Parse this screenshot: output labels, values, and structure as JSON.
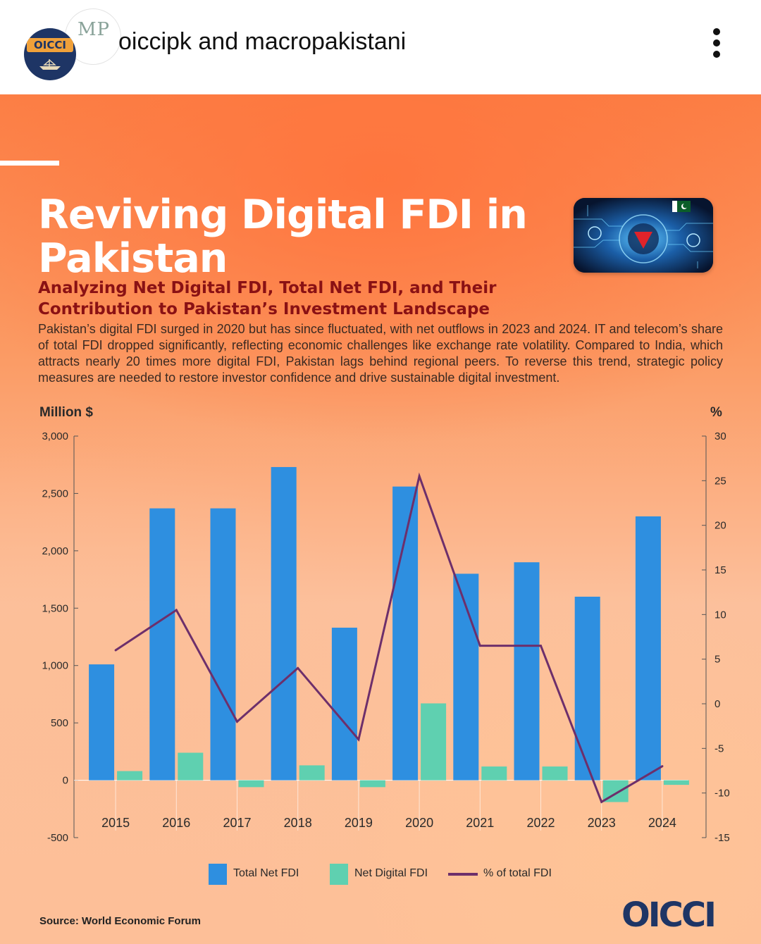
{
  "header": {
    "account_names": "oiccipk and macropakistani",
    "avatar_primary_text": "OICCI",
    "avatar_secondary_text": "MP"
  },
  "poster": {
    "title": "Reviving Digital FDI in Pakistan",
    "subtitle": "Analyzing Net Digital FDI, Total Net FDI, and Their Contribution to Pakistan’s Investment Landscape",
    "body": "Pakistan’s digital FDI surged in 2020 but has since fluctuated, with net outflows in 2023 and 2024. IT and telecom’s share of total FDI dropped significantly, reflecting economic challenges like exchange rate volatility. Compared to India, which attracts nearly 20 times more digital FDI, Pakistan lags behind regional peers. To reverse this trend, strategic policy measures are needed to restore investor confidence and drive sustainable digital investment.",
    "source": "Source: World Economic Forum",
    "footer_logo": "OICCI"
  },
  "colors": {
    "total_net_fdi": "#2e8fe0",
    "net_digital_fdi": "#5fd0b0",
    "pct_line": "#6d2f6b",
    "subtitle": "#8a1114",
    "brand_navy": "#1e3565"
  },
  "chart_data": {
    "type": "bar",
    "categories": [
      "2015",
      "2016",
      "2017",
      "2018",
      "2019",
      "2020",
      "2021",
      "2022",
      "2023",
      "2024"
    ],
    "ylabel": "Million $",
    "y2label": "%",
    "ylim": [
      -500,
      3000
    ],
    "y2lim": [
      -15,
      30
    ],
    "yticks": [
      "3,000",
      "2,500",
      "2,000",
      "1,500",
      "1,000",
      "500",
      "0",
      "-500"
    ],
    "y2ticks": [
      "30",
      "25",
      "20",
      "15",
      "10",
      "5",
      "0",
      "-5",
      "-10",
      "-15"
    ],
    "series": [
      {
        "name": "Total Net FDI",
        "type": "bar",
        "axis": "left",
        "values": [
          1010,
          2370,
          2370,
          2730,
          1330,
          2560,
          1800,
          1900,
          1600,
          2300
        ]
      },
      {
        "name": "Net Digital FDI",
        "type": "bar",
        "axis": "left",
        "values": [
          80,
          240,
          -60,
          130,
          -60,
          670,
          120,
          120,
          -190,
          -40
        ]
      },
      {
        "name": "% of total FDI",
        "type": "line",
        "axis": "right",
        "values": [
          6,
          10.5,
          -2,
          4,
          -4,
          25.5,
          6.5,
          6.5,
          -11,
          -7
        ]
      }
    ],
    "legend": "bottom-center",
    "grid": false
  }
}
